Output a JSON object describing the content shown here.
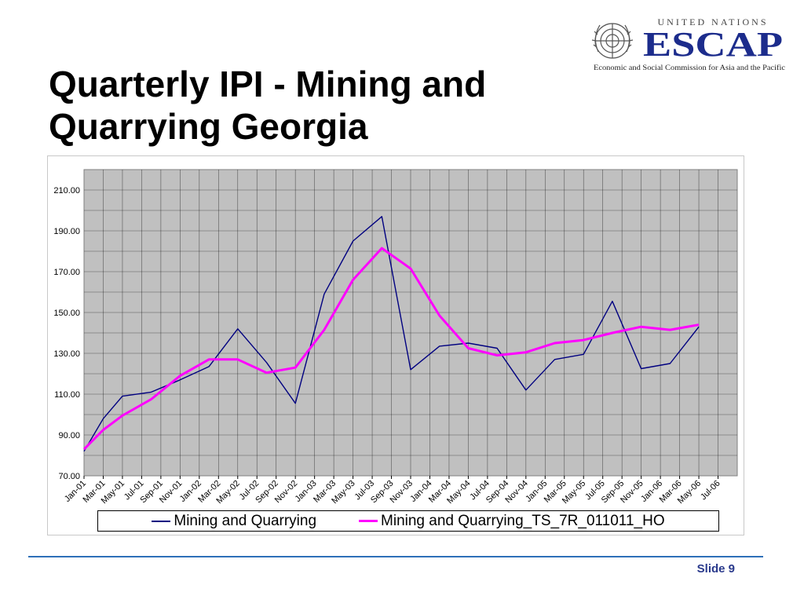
{
  "slide": {
    "title": "Quarterly IPI - Mining and Quarrying Georgia",
    "slide_label": "Slide 9",
    "footer_line_color": "#2e6fb8"
  },
  "logo": {
    "line1": "UNITED NATIONS",
    "line2": "ESCAP",
    "line3": "Economic and Social Commission for Asia and the Pacific",
    "color": "#1c2c8c",
    "emblem_icon": "un-emblem-icon"
  },
  "chart_data": {
    "type": "line",
    "categories": [
      "Jan-01",
      "Mar-01",
      "May-01",
      "Jul-01",
      "Sep-01",
      "Nov-01",
      "Jan-02",
      "Mar-02",
      "May-02",
      "Jul-02",
      "Sep-02",
      "Nov-02",
      "Jan-03",
      "Mar-03",
      "May-03",
      "Jul-03",
      "Sep-03",
      "Nov-03",
      "Jan-04",
      "Mar-04",
      "May-04",
      "Jul-04",
      "Sep-04",
      "Nov-04",
      "Jan-05",
      "Mar-05",
      "May-05",
      "Jul-05",
      "Sep-05",
      "Nov-05",
      "Jan-06",
      "Mar-06",
      "May-06",
      "Jul-06"
    ],
    "x_points": [
      "Jan-01",
      "Jul-01",
      "Jan-02",
      "Jul-02",
      "Jan-03",
      "Jul-03",
      "Jan-04",
      "Jul-04",
      "Jan-05",
      "Jul-05",
      "Jan-06",
      "Jul-06"
    ],
    "ylim": [
      70,
      220
    ],
    "y_ticks": [
      "70.00",
      "90.00",
      "110.00",
      "130.00",
      "150.00",
      "170.00",
      "190.00",
      "210.00"
    ],
    "grid": true,
    "plot_background": "#c0c0c0",
    "legend_position": "bottom",
    "series": [
      {
        "name": "Mining and Quarrying",
        "color": "#000080",
        "points": [
          [
            "Jan-01",
            82
          ],
          [
            "Mar-01",
            98
          ],
          [
            "May-01",
            109
          ],
          [
            "Aug-01",
            111
          ],
          [
            "Nov-01",
            117
          ],
          [
            "Feb-02",
            123.5
          ],
          [
            "May-02",
            142
          ],
          [
            "Aug-02",
            125.5
          ],
          [
            "Nov-02",
            105.5
          ],
          [
            "Feb-03",
            159
          ],
          [
            "May-03",
            185
          ],
          [
            "Aug-03",
            197
          ],
          [
            "Nov-03",
            122
          ],
          [
            "Feb-04",
            133.5
          ],
          [
            "May-04",
            135
          ],
          [
            "Aug-04",
            132.5
          ],
          [
            "Nov-04",
            112
          ],
          [
            "Feb-05",
            127
          ],
          [
            "May-05",
            129.5
          ],
          [
            "Aug-05",
            155.5
          ],
          [
            "Nov-05",
            122.5
          ],
          [
            "Feb-06",
            125
          ],
          [
            "May-06",
            143
          ]
        ]
      },
      {
        "name": "Mining and Quarrying_TS_7R_011011_HO",
        "color": "#ff00ff",
        "points": [
          [
            "Jan-01",
            83
          ],
          [
            "Mar-01",
            92.5
          ],
          [
            "May-01",
            99.5
          ],
          [
            "Aug-01",
            107.5
          ],
          [
            "Nov-01",
            119
          ],
          [
            "Feb-02",
            127
          ],
          [
            "May-02",
            127
          ],
          [
            "Aug-02",
            120.5
          ],
          [
            "Nov-02",
            123
          ],
          [
            "Feb-03",
            141.5
          ],
          [
            "May-03",
            166
          ],
          [
            "Aug-03",
            181.5
          ],
          [
            "Nov-03",
            171.5
          ],
          [
            "Feb-04",
            148.5
          ],
          [
            "May-04",
            132.5
          ],
          [
            "Aug-04",
            129
          ],
          [
            "Nov-04",
            130.5
          ],
          [
            "Feb-05",
            135
          ],
          [
            "May-05",
            136.5
          ],
          [
            "Aug-05",
            140
          ],
          [
            "Nov-05",
            143
          ],
          [
            "Feb-06",
            141.5
          ],
          [
            "May-06",
            144
          ]
        ]
      }
    ]
  }
}
